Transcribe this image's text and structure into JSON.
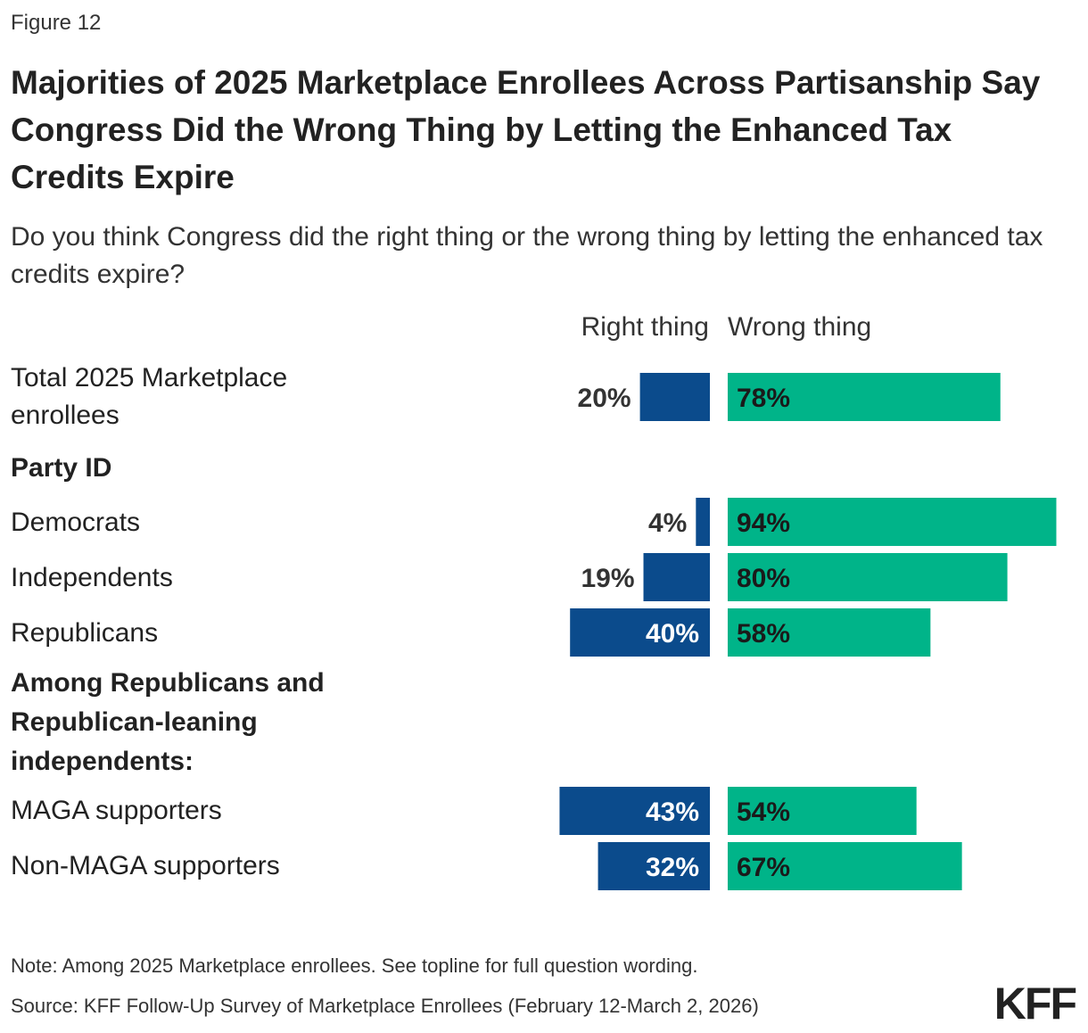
{
  "figure_label": "Figure 12",
  "title": "Majorities of 2025 Marketplace Enrollees Across Partisanship Say Congress Did the Wrong Thing by Letting the Enhanced Tax Credits Expire",
  "subtitle": "Do you think Congress did the right thing or the wrong thing by letting the enhanced tax credits expire?",
  "note": "Note: Among 2025 Marketplace enrollees. See topline for full question wording.",
  "source": "Source: KFF Follow-Up Survey of Marketplace Enrollees (February 12-March 2, 2026)",
  "logo": "KFF",
  "colors": {
    "right": "#0b4b8c",
    "wrong": "#00b489"
  },
  "chart_data": {
    "type": "bar",
    "orientation": "horizontal-diverging",
    "series": [
      {
        "name": "Right thing",
        "values": [
          20,
          4,
          19,
          40,
          43,
          32
        ]
      },
      {
        "name": "Wrong thing",
        "values": [
          78,
          94,
          80,
          58,
          54,
          67
        ]
      }
    ],
    "categories": [
      "Total 2025 Marketplace enrollees",
      "Democrats",
      "Independents",
      "Republicans",
      "MAGA supporters",
      "Non-MAGA supporters"
    ],
    "groups": [
      {
        "label": "Party ID",
        "categories": [
          "Democrats",
          "Independents",
          "Republicans"
        ]
      },
      {
        "label": "Among Republicans and Republican-leaning independents:",
        "categories": [
          "MAGA supporters",
          "Non-MAGA supporters"
        ]
      }
    ],
    "value_labels": {
      "right": [
        "20%",
        "4%",
        "19%",
        "40%",
        "43%",
        "32%"
      ],
      "wrong": [
        "78%",
        "94%",
        "80%",
        "58%",
        "54%",
        "67%"
      ]
    },
    "unit": "%"
  }
}
